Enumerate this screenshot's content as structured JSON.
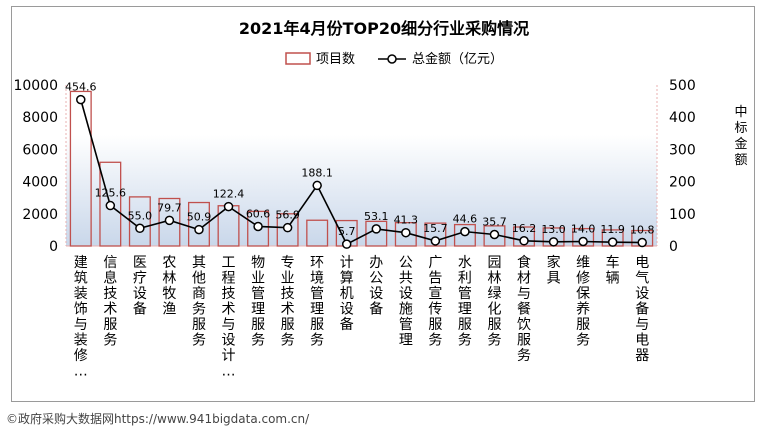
{
  "chart_data": {
    "type": "bar",
    "title": "2021年4月份TOP20细分行业采购情况",
    "legend": {
      "position": "top",
      "entries": [
        "项目数",
        "总金额（亿元）"
      ]
    },
    "categories": [
      [
        "建",
        "筑",
        "装",
        "饰",
        "与",
        "装",
        "修",
        "…"
      ],
      [
        "信",
        "息",
        "技",
        "术",
        "服",
        "务"
      ],
      [
        "医",
        "疗",
        "设",
        "备"
      ],
      [
        "农",
        "林",
        "牧",
        "渔"
      ],
      [
        "其",
        "他",
        "商",
        "务",
        "服",
        "务"
      ],
      [
        "工",
        "程",
        "技",
        "术",
        "与",
        "设",
        "计",
        "…"
      ],
      [
        "物",
        "业",
        "管",
        "理",
        "服",
        "务"
      ],
      [
        "专",
        "业",
        "技",
        "术",
        "服",
        "务"
      ],
      [
        "环",
        "境",
        "管",
        "理",
        "服",
        "务"
      ],
      [
        "计",
        "算",
        "机",
        "设",
        "备"
      ],
      [
        "办",
        "公",
        "设",
        "备"
      ],
      [
        "公",
        "共",
        "设",
        "施",
        "管",
        "理"
      ],
      [
        "广",
        "告",
        "宣",
        "传",
        "服",
        "务"
      ],
      [
        "水",
        "利",
        "管",
        "理",
        "服",
        "务"
      ],
      [
        "园",
        "林",
        "绿",
        "化",
        "服",
        "务"
      ],
      [
        "食",
        "材",
        "与",
        "餐",
        "饮",
        "服",
        "务"
      ],
      [
        "家",
        "具"
      ],
      [
        "维",
        "修",
        "保",
        "养",
        "服",
        "务"
      ],
      [
        "车",
        "辆"
      ],
      [
        "电",
        "气",
        "设",
        "备",
        "与",
        "电",
        "器"
      ]
    ],
    "series": [
      {
        "name": "项目数",
        "kind": "bar",
        "axis": "left",
        "color": "#c0504d",
        "values": [
          9600,
          5200,
          3050,
          2950,
          2700,
          2500,
          2150,
          2000,
          1600,
          1580,
          1530,
          1450,
          1420,
          1330,
          1250,
          1180,
          1120,
          1080,
          1000,
          960
        ]
      },
      {
        "name": "总金额（亿元）",
        "kind": "line",
        "axis": "right",
        "color": "#000000",
        "values": [
          454.6,
          125.6,
          55.0,
          79.7,
          50.9,
          122.4,
          60.6,
          56.9,
          188.1,
          5.7,
          53.1,
          41.3,
          15.7,
          44.6,
          35.7,
          16.2,
          13.0,
          14.0,
          11.9,
          10.8
        ],
        "labels": [
          "454.6",
          "125.6",
          "55.0",
          "79.7",
          "50.9",
          "122.4",
          "60.6",
          "56.9",
          "188.1",
          "5.7",
          "53.1",
          "41.3",
          "15.7",
          "44.6",
          "35.7",
          "16.2",
          "13.0",
          "14.0",
          "11.9",
          "10.8"
        ]
      }
    ],
    "y_left": {
      "ylim": [
        0,
        10000
      ],
      "ticks": [
        "0",
        "2000",
        "4000",
        "6000",
        "8000",
        "10000"
      ]
    },
    "y_right": {
      "ylim": [
        0,
        500
      ],
      "ticks": [
        "0",
        "100",
        "200",
        "300",
        "400",
        "500"
      ],
      "label": [
        "中",
        "标",
        "金",
        "额"
      ]
    },
    "grid": false,
    "background_gradient": [
      "#ffffff",
      "#c9d7ea"
    ]
  },
  "footer": "©政府采购大数据网https://www.941bigdata.com.cn/"
}
